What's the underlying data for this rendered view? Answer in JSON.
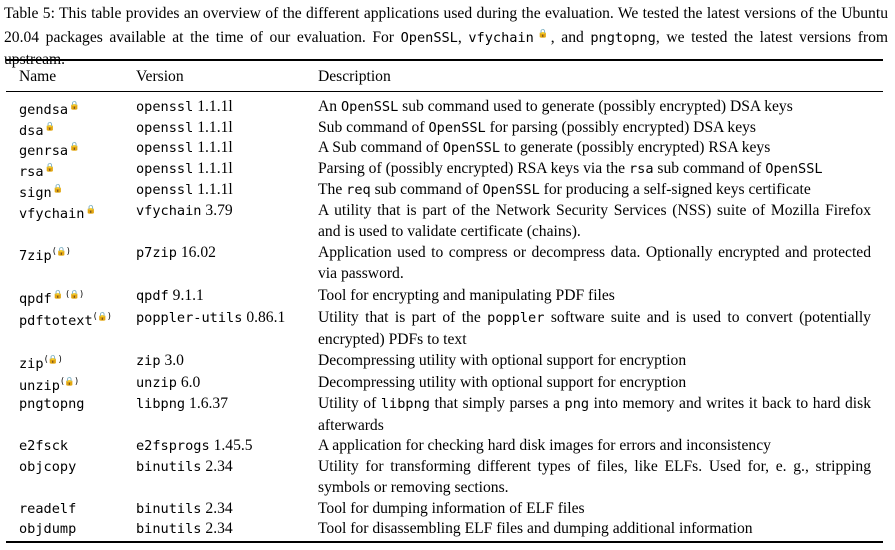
{
  "caption": {
    "part1": "Table 5: This table provides an overview of the different applications used during the evaluation. We tested the latest versions of the Ubuntu 20.04 packages available at the time of our evaluation. For ",
    "m1": "OpenSSL",
    "sep1": ", ",
    "m2": "vfychain",
    "sep2": ", and ",
    "m3": "pngtopng",
    "part2": ", we tested the latest versions from upstream."
  },
  "columns": {
    "name": "Name",
    "version": "Version",
    "description": "Description"
  },
  "rows": [
    {
      "name": "gendsa",
      "lock": "🔒",
      "pkg": "openssl",
      "ver": "1.1.1l",
      "desc": [
        {
          "t": "An "
        },
        {
          "m": "OpenSSL"
        },
        {
          "t": " sub command used to generate (possibly encrypted) DSA keys"
        }
      ]
    },
    {
      "name": "dsa",
      "lock": "🔒",
      "pkg": "openssl",
      "ver": "1.1.1l",
      "desc": [
        {
          "t": "Sub command of "
        },
        {
          "m": "OpenSSL"
        },
        {
          "t": " for parsing (possibly encrypted) DSA keys"
        }
      ]
    },
    {
      "name": "genrsa",
      "lock": "🔒",
      "pkg": "openssl",
      "ver": "1.1.1l",
      "desc": [
        {
          "t": "A Sub command of "
        },
        {
          "m": "OpenSSL"
        },
        {
          "t": " to generate (possibly encrypted) RSA keys"
        }
      ]
    },
    {
      "name": "rsa",
      "lock": "🔒",
      "pkg": "openssl",
      "ver": "1.1.1l",
      "desc": [
        {
          "t": "Parsing of (possibly encrypted) RSA keys via the "
        },
        {
          "m": "rsa"
        },
        {
          "t": " sub command of "
        },
        {
          "m": "OpenSSL"
        }
      ]
    },
    {
      "name": "sign",
      "lock": "🔒",
      "pkg": "openssl",
      "ver": "1.1.1l",
      "desc": [
        {
          "t": "The "
        },
        {
          "m": "req"
        },
        {
          "t": " sub command of "
        },
        {
          "m": "OpenSSL"
        },
        {
          "t": " for producing a self-signed keys certificate"
        }
      ]
    },
    {
      "name": "vfychain",
      "lock": "🔒",
      "pkg": "vfychain",
      "ver": "3.79",
      "desc": [
        {
          "t": "A utility that is part of the Network Security Services (NSS) suite of Mozilla Firefox and is used to validate certificate (chains)."
        }
      ]
    },
    {
      "name": "7zip",
      "lock": "(🔒)",
      "pkg": "p7zip",
      "ver": "16.02",
      "desc": [
        {
          "t": "Application used to compress or decompress data.  Optionally encrypted and protected via password."
        }
      ]
    },
    {
      "name": "qpdf",
      "lock": "🔒 (🔒)",
      "pkg": "qpdf",
      "ver": "9.1.1",
      "desc": [
        {
          "t": "Tool for encrypting and manipulating PDF files"
        }
      ]
    },
    {
      "name": "pdftotext",
      "lock": "(🔒)",
      "pkg": "poppler-utils",
      "ver": "0.86.1",
      "desc": [
        {
          "t": "Utility that is part of the "
        },
        {
          "m": "poppler"
        },
        {
          "t": " software suite and is used to convert (potentially encrypted) PDFs to text"
        }
      ]
    },
    {
      "name": "zip",
      "lock": "(🔒)",
      "pkg": "zip",
      "ver": "3.0",
      "desc": [
        {
          "t": "Decompressing utility with optional support for encryption"
        }
      ]
    },
    {
      "name": "unzip",
      "lock": "(🔒)",
      "pkg": "unzip",
      "ver": "6.0",
      "desc": [
        {
          "t": "Decompressing utility with optional support for encryption"
        }
      ]
    },
    {
      "name": "pngtopng",
      "lock": "",
      "pkg": "libpng",
      "ver": "1.6.37",
      "desc": [
        {
          "t": "Utility of "
        },
        {
          "m": "libpng"
        },
        {
          "t": " that simply parses a "
        },
        {
          "m": "png"
        },
        {
          "t": " into memory and writes it back to hard disk afterwards"
        }
      ]
    },
    {
      "name": "e2fsck",
      "lock": "",
      "pkg": "e2fsprogs",
      "ver": "1.45.5",
      "desc": [
        {
          "t": "A application for checking hard disk images for errors and inconsistency"
        }
      ]
    },
    {
      "name": "objcopy",
      "lock": "",
      "pkg": "binutils",
      "ver": "2.34",
      "desc": [
        {
          "t": "Utility for transforming different types of files, like ELFs. Used for, e. g., stripping symbols or removing sections."
        }
      ]
    },
    {
      "name": "readelf",
      "lock": "",
      "pkg": "binutils",
      "ver": "2.34",
      "desc": [
        {
          "t": "Tool for dumping information of ELF files"
        }
      ]
    },
    {
      "name": "objdump",
      "lock": "",
      "pkg": "binutils",
      "ver": "2.34",
      "desc": [
        {
          "t": "Tool for disassembling ELF files and dumping additional information"
        }
      ]
    }
  ]
}
